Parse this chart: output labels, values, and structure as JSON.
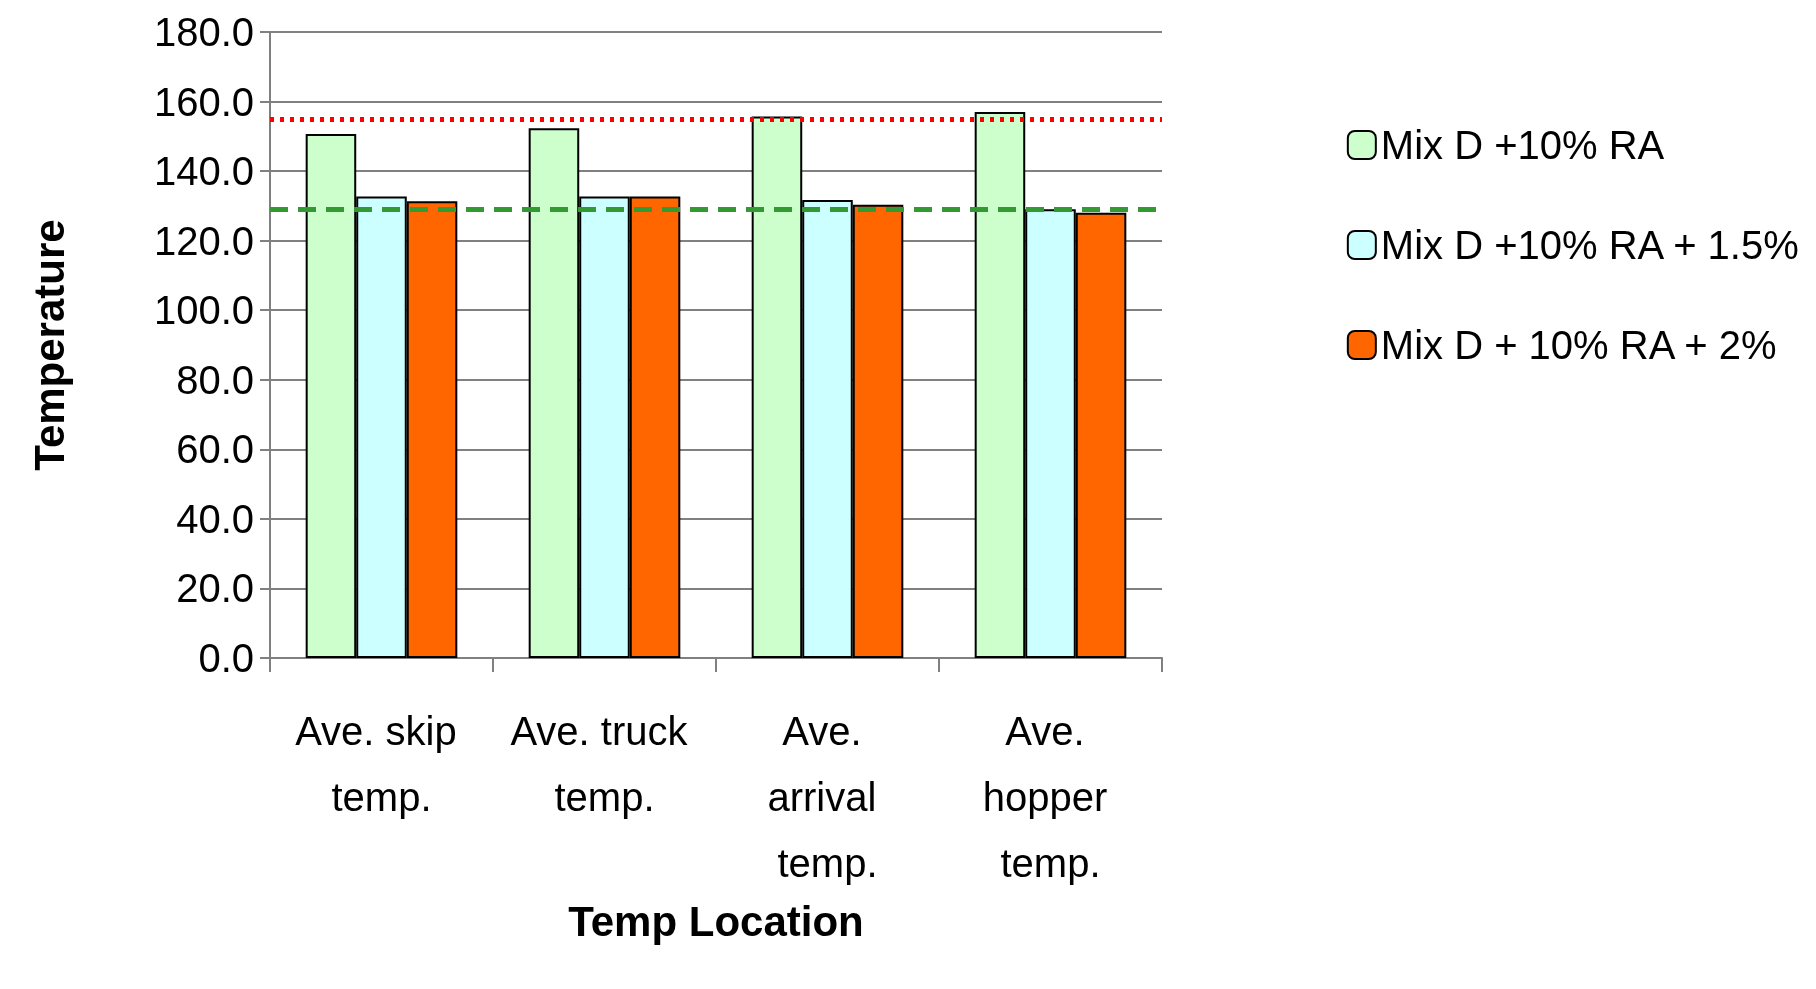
{
  "chart_data": {
    "type": "bar",
    "xlabel": "Temp Location",
    "ylabel": "Temperature",
    "categories": [
      "Ave. skip temp.",
      "Ave. truck temp.",
      "Ave. arrival temp.",
      "Ave. hopper temp."
    ],
    "series": [
      {
        "name": "Mix D +10% RA",
        "color": "#ccffcc",
        "values": [
          150.7,
          152.3,
          155.7,
          157
        ]
      },
      {
        "name": "Mix D +10% RA + 1.5%",
        "color": "#ccffff",
        "values": [
          132.7,
          132.7,
          131.7,
          129
        ]
      },
      {
        "name": "Mix D + 10% RA + 2%",
        "color": "#ff6600",
        "values": [
          131.3,
          132.7,
          130.3,
          128
        ]
      }
    ],
    "ylim": [
      0,
      180
    ],
    "yticks": [
      {
        "value": 0,
        "label": "0.0"
      },
      {
        "value": 20,
        "label": "20.0"
      },
      {
        "value": 40,
        "label": "40.0"
      },
      {
        "value": 60,
        "label": "60.0"
      },
      {
        "value": 80,
        "label": "80.0"
      },
      {
        "value": 100,
        "label": "100.0"
      },
      {
        "value": 120,
        "label": "120.0"
      },
      {
        "value": 140,
        "label": "140.0"
      },
      {
        "value": 160,
        "label": "160.0"
      },
      {
        "value": 180,
        "label": "180.0"
      }
    ],
    "ref_lines": [
      {
        "axis": "y",
        "value": 155,
        "color": "#ff0000",
        "line_style": "dotted"
      },
      {
        "axis": "y",
        "value": 129,
        "color": "#339933",
        "line_style": "dashed"
      }
    ],
    "grid": "y",
    "legend": "right"
  }
}
